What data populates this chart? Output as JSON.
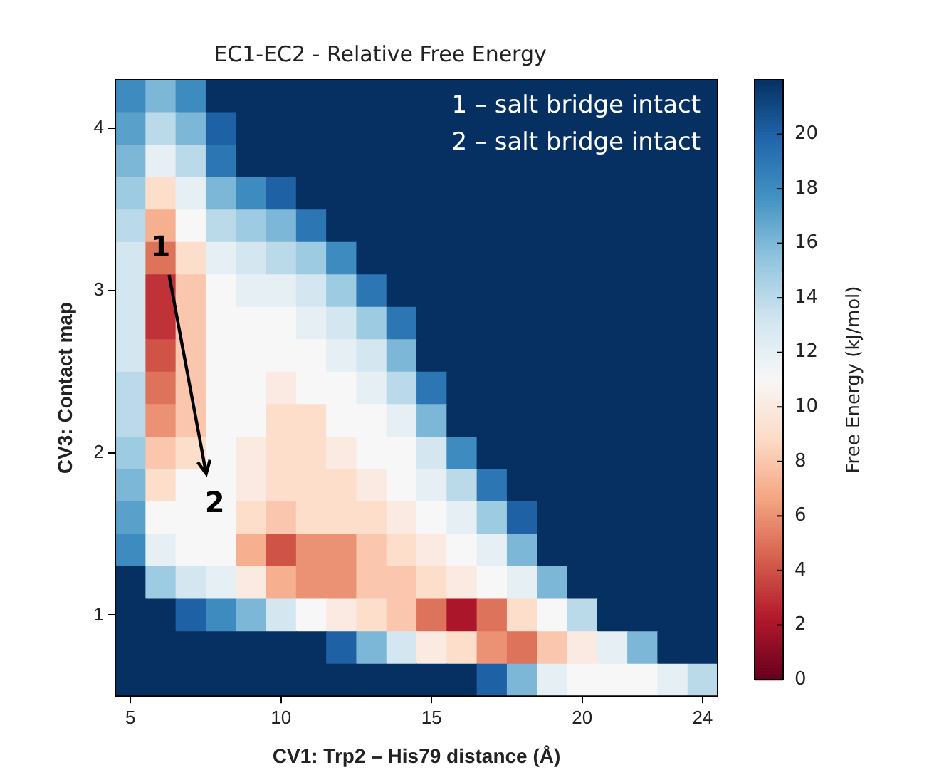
{
  "chart_data": {
    "type": "heatmap",
    "title": "EC1-EC2 - Relative Free Energy",
    "xlabel": "CV1: Trp2 – His79 distance (Å)",
    "ylabel": "CV3: Contact map",
    "clabel": "Free Energy (kJ/mol)",
    "categories": [
      "5",
      null,
      null,
      null,
      null,
      "10",
      null,
      null,
      null,
      null,
      "15",
      null,
      null,
      null,
      null,
      "20",
      null,
      null,
      null,
      "24"
    ],
    "y_categories": [
      null,
      "4",
      null,
      null,
      null,
      null,
      "3",
      null,
      null,
      null,
      null,
      "2",
      null,
      null,
      null,
      null,
      "1",
      null,
      null
    ],
    "clim": [
      0,
      22
    ],
    "cticks": [
      0,
      2,
      4,
      6,
      8,
      10,
      12,
      14,
      16,
      18,
      20
    ],
    "cells": [
      [
        18,
        16,
        18,
        22,
        22,
        22,
        22,
        22,
        22,
        22,
        22,
        22,
        22,
        22,
        22,
        22,
        22,
        22,
        22,
        22
      ],
      [
        17,
        14,
        16,
        20,
        22,
        22,
        22,
        22,
        22,
        22,
        22,
        22,
        22,
        22,
        22,
        22,
        22,
        22,
        22,
        22
      ],
      [
        16,
        12,
        14,
        19,
        22,
        22,
        22,
        22,
        22,
        22,
        22,
        22,
        22,
        22,
        22,
        22,
        22,
        22,
        22,
        22
      ],
      [
        15,
        9,
        12,
        16,
        18,
        20,
        22,
        22,
        22,
        22,
        22,
        22,
        22,
        22,
        22,
        22,
        22,
        22,
        22,
        22
      ],
      [
        14,
        7,
        11,
        14,
        15,
        16,
        19,
        22,
        22,
        22,
        22,
        22,
        22,
        22,
        22,
        22,
        22,
        22,
        22,
        22
      ],
      [
        13,
        5,
        9,
        12,
        13,
        14,
        15,
        18,
        22,
        22,
        22,
        22,
        22,
        22,
        22,
        22,
        22,
        22,
        22,
        22
      ],
      [
        13,
        3,
        8,
        11,
        12,
        12,
        13,
        15,
        19,
        22,
        22,
        22,
        22,
        22,
        22,
        22,
        22,
        22,
        22,
        22
      ],
      [
        13,
        3,
        8,
        11,
        11,
        11,
        12,
        13,
        15,
        19,
        22,
        22,
        22,
        22,
        22,
        22,
        22,
        22,
        22,
        22
      ],
      [
        13,
        4,
        8,
        11,
        11,
        11,
        11,
        12,
        13,
        16,
        22,
        22,
        22,
        22,
        22,
        22,
        22,
        22,
        22,
        22
      ],
      [
        14,
        5,
        8,
        11,
        11,
        10,
        11,
        11,
        12,
        14,
        19,
        22,
        22,
        22,
        22,
        22,
        22,
        22,
        22,
        22
      ],
      [
        14,
        6,
        8,
        11,
        11,
        9,
        9,
        11,
        11,
        12,
        16,
        22,
        22,
        22,
        22,
        22,
        22,
        22,
        22,
        22
      ],
      [
        15,
        8,
        9,
        11,
        10,
        9,
        9,
        10,
        11,
        11,
        13,
        18,
        22,
        22,
        22,
        22,
        22,
        22,
        22,
        22
      ],
      [
        16,
        9,
        11,
        11,
        10,
        9,
        9,
        9,
        10,
        11,
        12,
        14,
        19,
        22,
        22,
        22,
        22,
        22,
        22,
        22
      ],
      [
        17,
        11,
        11,
        11,
        9,
        8,
        9,
        9,
        9,
        10,
        11,
        12,
        15,
        20,
        22,
        22,
        22,
        22,
        22,
        22
      ],
      [
        18,
        12,
        11,
        11,
        7,
        4,
        6,
        6,
        8,
        9,
        10,
        11,
        12,
        16,
        22,
        22,
        22,
        22,
        22,
        22
      ],
      [
        22,
        15,
        13,
        12,
        10,
        7,
        6,
        6,
        8,
        8,
        9,
        10,
        11,
        12,
        16,
        22,
        22,
        22,
        22,
        22
      ],
      [
        22,
        22,
        20,
        18,
        16,
        13,
        11,
        10,
        9,
        8,
        5,
        2,
        5,
        9,
        11,
        14,
        22,
        22,
        22,
        22
      ],
      [
        22,
        22,
        22,
        22,
        22,
        22,
        22,
        20,
        16,
        13,
        10,
        9,
        6,
        5,
        8,
        10,
        12,
        16,
        22,
        22
      ],
      [
        22,
        22,
        22,
        22,
        22,
        22,
        22,
        22,
        22,
        22,
        22,
        22,
        20,
        16,
        12,
        11,
        11,
        11,
        12,
        14
      ]
    ],
    "annotations": [
      "1 – salt bridge intact",
      "2 – salt bridge intact",
      "1",
      "2"
    ]
  }
}
